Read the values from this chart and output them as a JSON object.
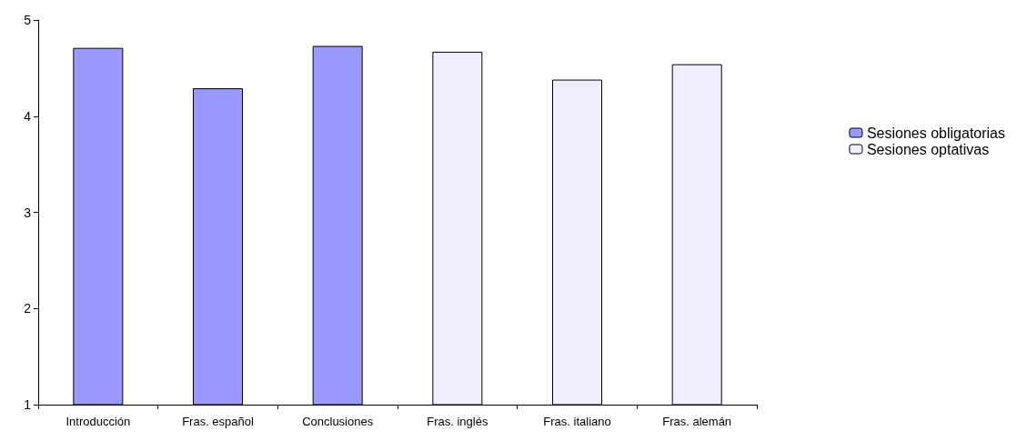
{
  "chart_data": {
    "type": "bar",
    "categories": [
      "Introducción",
      "Fras. español",
      "Conclusiones",
      "Fras. inglés",
      "Fras. italiano",
      "Fras. alemán"
    ],
    "series": [
      {
        "name": "Sesiones obligatorias",
        "color": "#9999ff",
        "values": [
          4.71,
          4.29,
          4.73,
          null,
          null,
          null
        ]
      },
      {
        "name": "Sesiones optativas",
        "color": "#eeeeff",
        "values": [
          null,
          null,
          null,
          4.67,
          4.38,
          4.54
        ]
      }
    ],
    "ylim": [
      1,
      5
    ],
    "yticks": [
      1,
      2,
      3,
      4,
      5
    ],
    "grid": false,
    "legend": "right"
  }
}
